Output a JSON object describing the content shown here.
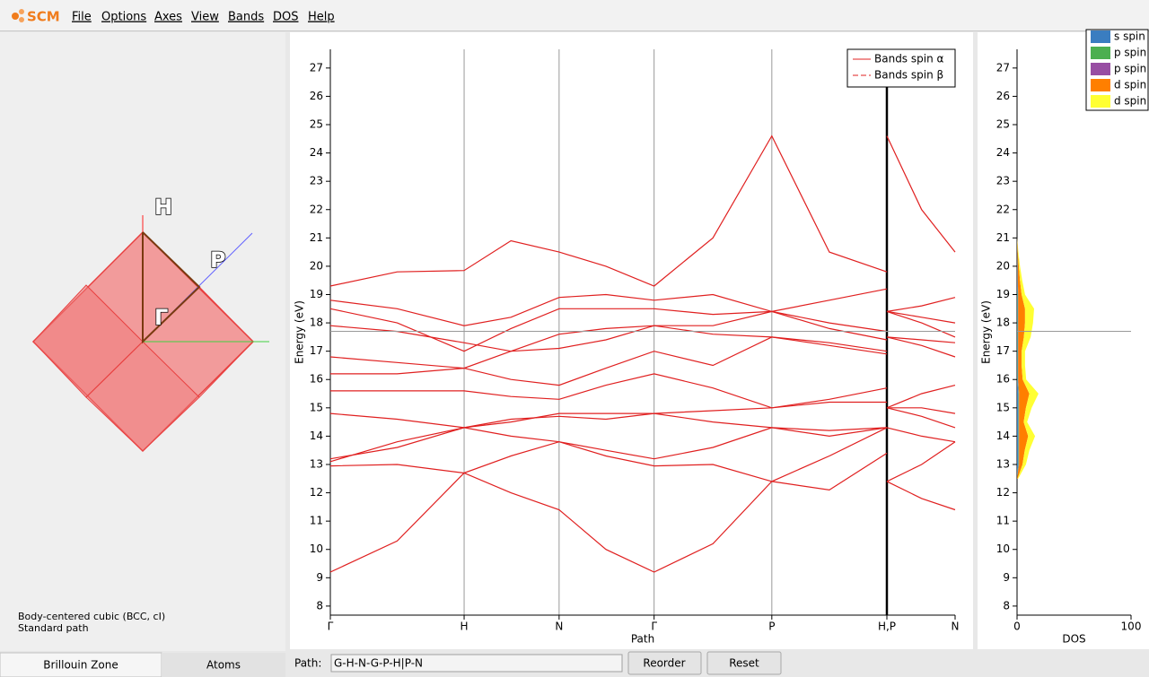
{
  "menu": {
    "logo": "SCM",
    "items": [
      "File",
      "Options",
      "Axes",
      "View",
      "Bands",
      "DOS",
      "Help"
    ]
  },
  "brillouin_zone": {
    "points": [
      "H",
      "P",
      "Γ"
    ],
    "caption": [
      "Body-centered cubic (BCC, cI)",
      "Standard path"
    ]
  },
  "tabs": [
    "Brillouin Zone",
    "Atoms"
  ],
  "path_bar": {
    "label": "Path:",
    "value": "G-H-N-G-P-H|P-N",
    "buttons": [
      "Reorder",
      "Reset"
    ]
  },
  "chart_data": [
    {
      "type": "line",
      "xlabel": "Path",
      "ylabel": "Energy (eV)",
      "xlim": [
        0,
        4.67
      ],
      "xticks": [
        {
          "value": 0,
          "label": "Γ"
        },
        {
          "value": 1,
          "label": "H"
        },
        {
          "value": 1.71,
          "label": "N"
        },
        {
          "value": 2.42,
          "label": "Γ"
        },
        {
          "value": 3.3,
          "label": "P"
        },
        {
          "value": 4.16,
          "label": "H,P"
        },
        {
          "value": 4.67,
          "label": "N"
        }
      ],
      "ylim": [
        7.68,
        27.66
      ],
      "yticks": [
        8,
        9,
        10,
        11,
        12,
        13,
        14,
        15,
        16,
        17,
        18,
        19,
        20,
        21,
        22,
        23,
        24,
        25,
        26,
        27
      ],
      "fermi_level": 17.7,
      "fermi_color": "#999999",
      "legend": [
        {
          "name": "Bands spin α",
          "color": "#e02020",
          "dash": "none"
        },
        {
          "name": "Bands spin β",
          "color": "#e02020",
          "dash": "6,3"
        }
      ],
      "color": "#e02020",
      "x": [
        0,
        0.5,
        1,
        1.35,
        1.71,
        2.06,
        2.42,
        2.86,
        3.3,
        3.73,
        4.16,
        4.16,
        4.16,
        4.42,
        4.67
      ],
      "series": [
        {
          "values": [
            9.2,
            10.3,
            12.7,
            12.0,
            11.4,
            10.0,
            9.2,
            10.2,
            12.4,
            13.3,
            14.3,
            null,
            12.4,
            11.8,
            11.4
          ]
        },
        {
          "values": [
            12.95,
            13.0,
            12.7,
            13.3,
            13.8,
            13.3,
            12.95,
            13.0,
            12.4,
            12.1,
            13.4,
            null,
            12.4,
            13.0,
            13.8
          ]
        },
        {
          "values": [
            13.2,
            13.6,
            14.3,
            14.0,
            13.8,
            13.5,
            13.2,
            13.6,
            14.3,
            14.2,
            14.3,
            null,
            14.3,
            14.0,
            13.8
          ]
        },
        {
          "values": [
            13.1,
            13.8,
            14.3,
            14.6,
            14.7,
            14.6,
            14.8,
            14.5,
            14.3,
            14.0,
            14.3,
            null,
            15.0,
            14.7,
            14.3
          ]
        },
        {
          "values": [
            14.8,
            14.6,
            14.3,
            14.5,
            14.8,
            14.8,
            14.8,
            14.9,
            15.0,
            15.2,
            15.2,
            null,
            15.0,
            15.0,
            14.8
          ]
        },
        {
          "values": [
            15.6,
            15.6,
            15.6,
            15.4,
            15.3,
            15.8,
            16.2,
            15.7,
            15.0,
            15.3,
            15.7,
            null,
            15.0,
            15.5,
            15.8
          ]
        },
        {
          "values": [
            16.2,
            16.2,
            16.4,
            16.0,
            15.8,
            16.4,
            17.0,
            16.5,
            17.5,
            17.2,
            16.9,
            null,
            17.5,
            17.2,
            16.8
          ]
        },
        {
          "values": [
            16.8,
            16.6,
            16.4,
            17.0,
            17.6,
            17.8,
            17.9,
            17.9,
            18.4,
            18.0,
            17.7,
            null,
            18.4,
            18.0,
            17.5
          ]
        },
        {
          "values": [
            17.9,
            17.7,
            17.3,
            17.0,
            17.1,
            17.4,
            17.9,
            17.6,
            17.5,
            17.3,
            17.0,
            null,
            17.5,
            17.4,
            17.3
          ]
        },
        {
          "values": [
            18.5,
            18.0,
            17.0,
            17.8,
            18.5,
            18.5,
            18.5,
            18.3,
            18.4,
            17.8,
            17.4,
            null,
            18.4,
            18.2,
            18.0
          ]
        },
        {
          "values": [
            18.8,
            18.5,
            17.9,
            18.2,
            18.9,
            19.0,
            18.8,
            19.0,
            18.4,
            18.8,
            19.2,
            null,
            18.4,
            18.6,
            18.9
          ]
        },
        {
          "values": [
            19.3,
            19.8,
            19.85,
            20.9,
            20.5,
            20.0,
            19.3,
            21.0,
            24.6,
            20.5,
            19.8,
            null,
            24.6,
            22.0,
            20.5
          ]
        }
      ]
    },
    {
      "type": "area",
      "orientation": "horizontal",
      "stacked": true,
      "xlabel": "DOS",
      "ylabel": "Energy (eV)",
      "xlim": [
        0,
        100
      ],
      "xticks": [
        0,
        100
      ],
      "ylim": [
        7.68,
        27.66
      ],
      "yticks": [
        8,
        9,
        10,
        11,
        12,
        13,
        14,
        15,
        16,
        17,
        18,
        19,
        20,
        21,
        22,
        23,
        24,
        25,
        26,
        27
      ],
      "fermi_level": 17.7,
      "fermi_color": "#999999",
      "y": [
        12.5,
        13,
        13.5,
        14,
        14.5,
        15,
        15.5,
        16,
        16.5,
        17,
        17.5,
        18,
        18.5,
        19,
        19.5,
        20,
        20.5,
        21
      ],
      "series": [
        {
          "name": "s spin",
          "color": "#3a7dc0",
          "values": [
            0,
            1,
            1,
            1,
            1,
            1,
            1,
            0.5,
            0.5,
            0.5,
            0.5,
            0.5,
            0.5,
            0.5,
            0.3,
            0.3,
            0.2,
            0
          ]
        },
        {
          "name": "p spin",
          "color": "#4caf50",
          "values": [
            0,
            0.5,
            0.5,
            0.5,
            0.5,
            0.5,
            0.5,
            0.3,
            0.3,
            0.3,
            0.3,
            0.3,
            0.3,
            0.3,
            0.2,
            0.2,
            0,
            0
          ]
        },
        {
          "name": "p spin",
          "color": "#984ea3",
          "values": [
            0,
            0.3,
            0.3,
            0.3,
            0.3,
            0.3,
            0.3,
            0.2,
            0.2,
            0.2,
            0.2,
            0.2,
            0.2,
            0.2,
            0.1,
            0.1,
            0,
            0
          ]
        },
        {
          "name": "d spin",
          "color": "#ff7f00",
          "values": [
            0.5,
            3,
            5,
            8,
            4,
            6,
            9,
            4,
            3,
            3,
            5,
            6,
            6,
            3,
            2,
            1,
            0.5,
            0
          ]
        },
        {
          "name": "d spin",
          "color": "#ffff33",
          "values": [
            0.5,
            3,
            4,
            6,
            3,
            5,
            8,
            3,
            3,
            3,
            6,
            7,
            8,
            3,
            2,
            1,
            0.5,
            0
          ]
        }
      ]
    }
  ]
}
